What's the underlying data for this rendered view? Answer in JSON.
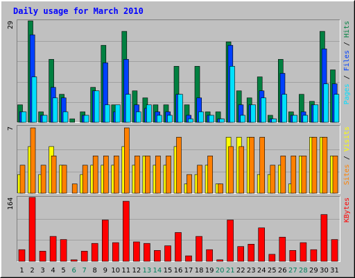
{
  "title": "Daily usage for March 2010",
  "colors": {
    "background": "#c0c0c0",
    "title": "#0000ff",
    "hits": "#008040",
    "files": "#0040ff",
    "pages": "#00e0ff",
    "visits": "#ffff00",
    "sites": "#ff8000",
    "kbytes": "#ff0000",
    "weekend_label": "#00805c",
    "weekday_label": "#000000"
  },
  "chart_data": [
    {
      "type": "bar",
      "panel": "hits-files-pages",
      "ylabel_parts": [
        "Pages",
        "Files",
        "Hits"
      ],
      "ymax_label": "29",
      "ylim": [
        0,
        29
      ],
      "categories": [
        "1",
        "2",
        "3",
        "4",
        "5",
        "6",
        "7",
        "8",
        "9",
        "10",
        "11",
        "12",
        "13",
        "14",
        "15",
        "16",
        "17",
        "18",
        "19",
        "20",
        "21",
        "22",
        "23",
        "24",
        "25",
        "26",
        "27",
        "28",
        "29",
        "30",
        "31"
      ],
      "weekend_days": [
        "6",
        "7",
        "13",
        "14",
        "20",
        "21",
        "27",
        "28"
      ],
      "series": [
        {
          "name": "Hits",
          "values": [
            5,
            29,
            3,
            18,
            8,
            1,
            3,
            10,
            22,
            5,
            26,
            9,
            7,
            5,
            5,
            16,
            5,
            16,
            3,
            3,
            23,
            9,
            7,
            13,
            2,
            18,
            3,
            8,
            6,
            26,
            15
          ]
        },
        {
          "name": "Files",
          "values": [
            3,
            25,
            2,
            10,
            7,
            0,
            2,
            9,
            17,
            3,
            18,
            5,
            4,
            3,
            3,
            8,
            2,
            7,
            2,
            1,
            22,
            5,
            5,
            9,
            1,
            14,
            2,
            3,
            5,
            21,
            11
          ]
        },
        {
          "name": "Pages",
          "values": [
            3,
            13,
            2,
            7,
            3,
            0,
            2,
            9,
            5,
            5,
            8,
            3,
            5,
            2,
            2,
            8,
            1,
            3,
            2,
            1,
            16,
            2,
            5,
            7,
            1,
            8,
            2,
            2,
            5,
            11,
            8
          ]
        }
      ]
    },
    {
      "type": "bar",
      "panel": "sites-visits",
      "ylabel_parts": [
        "Sites",
        "Visits"
      ],
      "ymax_label": "7",
      "ylim": [
        0,
        7
      ],
      "categories": [
        "1",
        "2",
        "3",
        "4",
        "5",
        "6",
        "7",
        "8",
        "9",
        "10",
        "11",
        "12",
        "13",
        "14",
        "15",
        "16",
        "17",
        "18",
        "19",
        "20",
        "21",
        "22",
        "23",
        "24",
        "25",
        "26",
        "27",
        "28",
        "29",
        "30",
        "31"
      ],
      "series": [
        {
          "name": "Visits",
          "values": [
            2,
            5,
            2,
            5,
            3,
            0,
            2,
            3,
            3,
            3,
            5,
            3,
            4,
            3,
            3,
            5,
            1,
            2,
            3,
            1,
            6,
            6,
            6,
            2,
            2,
            3,
            1,
            4,
            6,
            6,
            4
          ]
        },
        {
          "name": "Sites",
          "values": [
            3,
            7,
            3,
            4,
            3,
            1,
            3,
            4,
            4,
            4,
            7,
            4,
            4,
            4,
            4,
            6,
            2,
            3,
            4,
            1,
            5,
            5,
            6,
            6,
            3,
            4,
            4,
            4,
            6,
            6,
            4
          ]
        }
      ]
    },
    {
      "type": "bar",
      "panel": "kbytes",
      "ylabel_parts": [
        "KBytes"
      ],
      "ymax_label": "164",
      "ylim": [
        0,
        164
      ],
      "categories": [
        "1",
        "2",
        "3",
        "4",
        "5",
        "6",
        "7",
        "8",
        "9",
        "10",
        "11",
        "12",
        "13",
        "14",
        "15",
        "16",
        "17",
        "18",
        "19",
        "20",
        "21",
        "22",
        "23",
        "24",
        "25",
        "26",
        "27",
        "28",
        "29",
        "30",
        "31"
      ],
      "series": [
        {
          "name": "KBytes",
          "values": [
            30,
            164,
            26,
            64,
            56,
            4,
            26,
            46,
            106,
            48,
            154,
            50,
            46,
            28,
            40,
            74,
            14,
            64,
            30,
            4,
            106,
            38,
            44,
            86,
            18,
            62,
            28,
            48,
            30,
            120,
            56
          ]
        }
      ]
    }
  ]
}
